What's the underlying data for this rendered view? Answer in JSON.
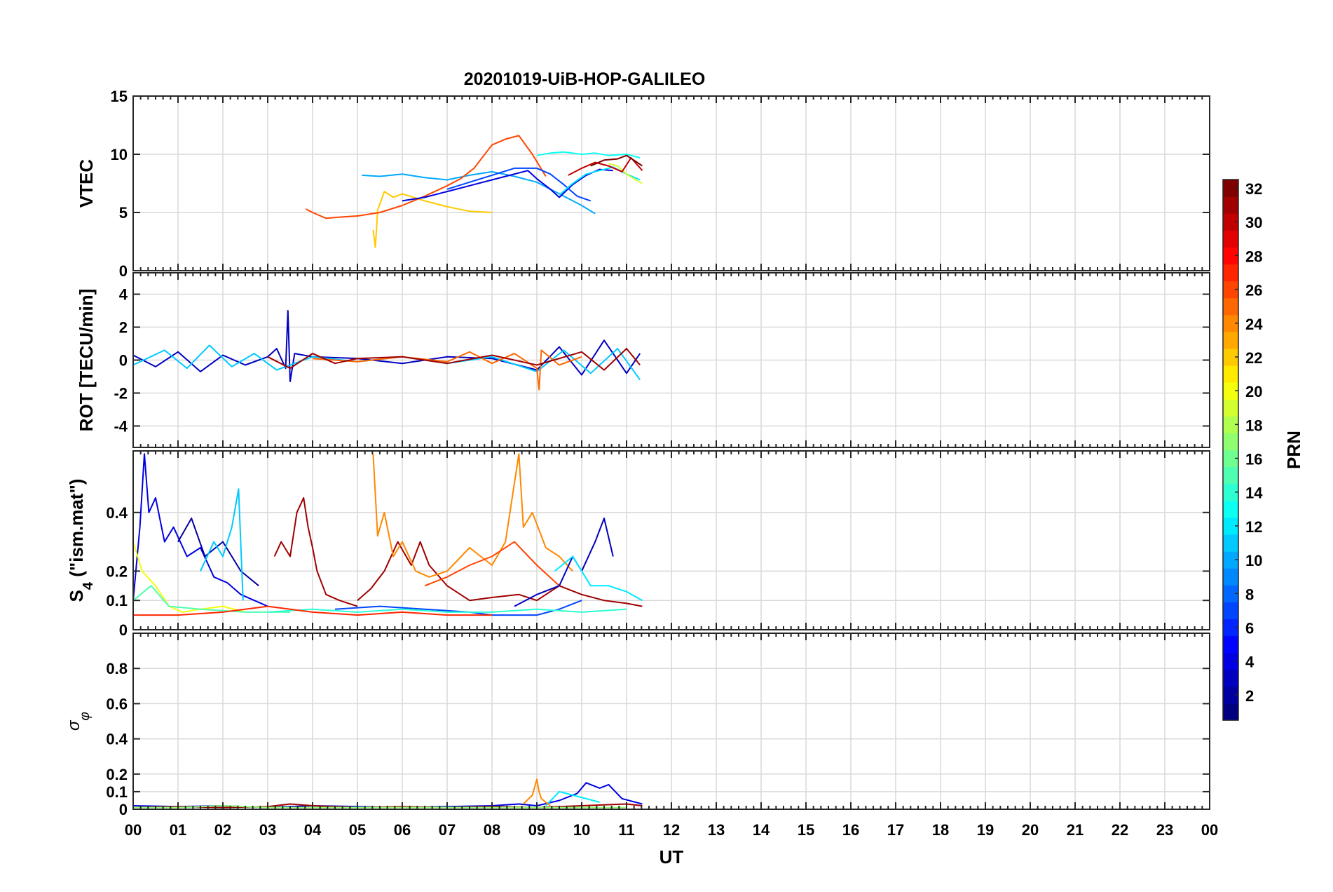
{
  "figure": {
    "title": "20201019-UiB-HOP-GALILEO",
    "xlabel": "UT",
    "x_ticks": [
      "00",
      "01",
      "02",
      "03",
      "04",
      "05",
      "06",
      "07",
      "08",
      "09",
      "10",
      "11",
      "12",
      "13",
      "14",
      "15",
      "16",
      "17",
      "18",
      "19",
      "20",
      "21",
      "22",
      "23",
      "00"
    ],
    "colorbar": {
      "label": "PRN",
      "range": [
        1,
        32
      ],
      "ticks": [
        "2",
        "4",
        "6",
        "8",
        "10",
        "12",
        "14",
        "16",
        "18",
        "20",
        "22",
        "24",
        "26",
        "28",
        "30",
        "32"
      ],
      "colormap": "jet"
    }
  },
  "chart_data": [
    {
      "type": "line",
      "ylabel": "VTEC",
      "xlim": [
        0,
        24
      ],
      "ylim": [
        0,
        15
      ],
      "y_ticks": [
        "0",
        "5",
        "10",
        "15"
      ],
      "series": [
        {
          "prn": 22,
          "x": [
            5.35,
            5.4,
            5.45,
            5.6,
            5.8,
            6.0,
            6.5,
            7.0,
            7.5,
            8.0
          ],
          "y": [
            3.5,
            2.0,
            5.2,
            6.8,
            6.3,
            6.6,
            6.0,
            5.5,
            5.1,
            5.0
          ]
        },
        {
          "prn": 10,
          "x": [
            5.1,
            5.5,
            6.0,
            6.5,
            7.0,
            7.5,
            8.0,
            8.5,
            9.0,
            9.5,
            10.0,
            10.3
          ],
          "y": [
            8.2,
            8.1,
            8.3,
            8.0,
            7.8,
            8.2,
            8.5,
            8.1,
            7.6,
            6.6,
            5.6,
            4.9
          ]
        },
        {
          "prn": 26,
          "x": [
            3.85,
            4.0,
            4.3,
            4.6,
            5.0,
            5.5,
            6.0,
            6.5,
            7.0,
            7.3,
            7.6,
            8.0,
            8.3,
            8.6,
            8.9,
            9.2
          ],
          "y": [
            5.3,
            5.0,
            4.5,
            4.6,
            4.7,
            5.0,
            5.6,
            6.4,
            7.3,
            7.9,
            8.8,
            10.8,
            11.3,
            11.6,
            10.0,
            8.1
          ]
        },
        {
          "prn": 4,
          "x": [
            6.0,
            6.5,
            7.0,
            7.5,
            8.0,
            8.4,
            8.8,
            9.0,
            9.3,
            9.5,
            9.8,
            10.1,
            10.4,
            10.7
          ],
          "y": [
            6.0,
            6.3,
            6.8,
            7.3,
            7.8,
            8.2,
            8.6,
            7.9,
            7.0,
            6.3,
            7.4,
            8.2,
            8.7,
            8.6
          ]
        },
        {
          "prn": 7,
          "x": [
            7.0,
            7.5,
            8.0,
            8.5,
            9.0,
            9.3,
            9.6,
            9.9,
            10.2
          ],
          "y": [
            7.0,
            7.6,
            8.2,
            8.8,
            8.8,
            8.3,
            7.4,
            6.4,
            6.0
          ]
        },
        {
          "prn": 13,
          "x": [
            9.0,
            9.3,
            9.6,
            10.0,
            10.3,
            10.6,
            11.0,
            11.3
          ],
          "y": [
            9.9,
            10.1,
            10.2,
            10.0,
            10.1,
            9.9,
            10.0,
            9.7
          ]
        },
        {
          "prn": 12,
          "x": [
            9.5,
            9.8,
            10.1,
            10.4,
            10.7,
            11.0,
            11.3
          ],
          "y": [
            6.5,
            7.5,
            8.3,
            8.6,
            8.9,
            8.3,
            7.8
          ]
        },
        {
          "prn": 19,
          "x": [
            10.6,
            10.8,
            11.0,
            11.2,
            11.35
          ],
          "y": [
            9.2,
            9.0,
            8.3,
            7.8,
            7.5
          ]
        },
        {
          "prn": 30,
          "x": [
            9.7,
            10.0,
            10.3,
            10.6,
            10.9,
            11.1,
            11.35
          ],
          "y": [
            8.2,
            8.8,
            9.3,
            9.0,
            8.5,
            9.7,
            8.6
          ]
        },
        {
          "prn": 32,
          "x": [
            10.2,
            10.5,
            10.8,
            11.0,
            11.2,
            11.35
          ],
          "y": [
            9.0,
            9.5,
            9.6,
            9.9,
            9.4,
            9.0
          ]
        }
      ]
    },
    {
      "type": "line",
      "ylabel": "ROT [TECU/min]",
      "xlim": [
        0,
        24
      ],
      "ylim": [
        -5.3,
        5.3
      ],
      "y_ticks": [
        "-4",
        "-2",
        "0",
        "2",
        "4"
      ],
      "series": [
        {
          "prn": 3,
          "x": [
            0.0,
            0.5,
            1.0,
            1.5,
            2.0,
            2.5,
            3.0,
            3.2,
            3.4,
            3.45,
            3.5,
            3.6,
            4.0,
            5.0,
            6.0,
            7.0,
            8.0,
            9.0,
            9.5,
            10.0,
            10.5,
            11.0,
            11.3
          ],
          "y": [
            0.3,
            -0.4,
            0.5,
            -0.7,
            0.3,
            -0.3,
            0.2,
            0.7,
            -0.5,
            3.0,
            -1.3,
            0.4,
            0.2,
            0.1,
            -0.2,
            0.2,
            0.1,
            -0.6,
            0.8,
            -0.9,
            1.2,
            -0.8,
            0.4
          ]
        },
        {
          "prn": 11,
          "x": [
            0.0,
            0.7,
            1.2,
            1.7,
            2.2,
            2.7,
            3.2,
            4.0,
            5.0,
            6.0,
            7.0,
            8.0,
            9.0,
            9.6,
            10.2,
            10.8,
            11.3
          ],
          "y": [
            -0.3,
            0.6,
            -0.5,
            0.9,
            -0.4,
            0.4,
            -0.6,
            0.2,
            -0.1,
            0.2,
            -0.2,
            0.2,
            -0.7,
            0.6,
            -0.8,
            0.7,
            -1.2
          ]
        },
        {
          "prn": 25,
          "x": [
            4.0,
            5.0,
            6.0,
            7.0,
            7.5,
            8.0,
            8.5,
            9.0,
            9.05,
            9.1,
            9.5,
            10.0
          ],
          "y": [
            0.1,
            -0.1,
            0.2,
            -0.1,
            0.5,
            -0.2,
            0.4,
            -0.5,
            -1.8,
            0.6,
            -0.3,
            0.2
          ]
        },
        {
          "prn": 31,
          "x": [
            3.0,
            3.5,
            4.0,
            4.5,
            5.0,
            6.0,
            7.0,
            8.0,
            9.0,
            10.0,
            10.5,
            11.0,
            11.3
          ],
          "y": [
            0.2,
            -0.5,
            0.4,
            -0.2,
            0.1,
            0.2,
            -0.2,
            0.3,
            -0.3,
            0.5,
            -0.6,
            0.7,
            -0.3
          ]
        }
      ]
    },
    {
      "type": "line",
      "ylabel": "S4 (\"ism.mat\")",
      "ylabel_main": "S",
      "ylabel_sub": "4",
      "ylabel_rest": " (\"ism.mat\")",
      "xlim": [
        0,
        24
      ],
      "ylim": [
        0,
        0.61
      ],
      "y_ticks": [
        "0",
        "0.1",
        "0.2",
        "0.4"
      ],
      "series": [
        {
          "prn": 4,
          "x": [
            0.0,
            0.15,
            0.25,
            0.35,
            0.5,
            0.7,
            0.9,
            1.2,
            1.5,
            1.8,
            2.1,
            2.4,
            2.7,
            3.0
          ],
          "y": [
            0.1,
            0.35,
            0.6,
            0.4,
            0.45,
            0.3,
            0.35,
            0.25,
            0.28,
            0.18,
            0.16,
            0.12,
            0.1,
            0.08
          ]
        },
        {
          "prn": 2,
          "x": [
            1.0,
            1.3,
            1.6,
            2.0,
            2.4,
            2.8
          ],
          "y": [
            0.3,
            0.38,
            0.25,
            0.3,
            0.2,
            0.15
          ]
        },
        {
          "prn": 11,
          "x": [
            1.5,
            1.8,
            2.0,
            2.2,
            2.35,
            2.45
          ],
          "y": [
            0.2,
            0.3,
            0.25,
            0.35,
            0.48,
            0.1
          ]
        },
        {
          "prn": 20,
          "x": [
            0.0,
            0.2,
            0.5,
            0.8,
            1.1,
            1.5,
            2.0,
            2.5
          ],
          "y": [
            0.3,
            0.2,
            0.15,
            0.08,
            0.06,
            0.07,
            0.08,
            0.06
          ]
        },
        {
          "prn": 15,
          "x": [
            0.0,
            0.4,
            0.8,
            1.5,
            2.5,
            3.5
          ],
          "y": [
            0.1,
            0.15,
            0.08,
            0.07,
            0.06,
            0.06
          ]
        },
        {
          "prn": 31,
          "x": [
            3.15,
            3.3,
            3.5,
            3.65,
            3.8,
            3.9,
            4.0,
            4.1,
            4.3,
            4.6,
            5.0
          ],
          "y": [
            0.25,
            0.3,
            0.25,
            0.4,
            0.45,
            0.35,
            0.28,
            0.2,
            0.12,
            0.1,
            0.08
          ]
        },
        {
          "prn": 31,
          "x": [
            5.0,
            5.3,
            5.6,
            5.9,
            6.2,
            6.4,
            6.6,
            7.0,
            7.5,
            8.0,
            8.6,
            9.0,
            9.5,
            10.0,
            10.5,
            11.0,
            11.35
          ],
          "y": [
            0.1,
            0.14,
            0.2,
            0.3,
            0.22,
            0.3,
            0.22,
            0.15,
            0.1,
            0.11,
            0.12,
            0.1,
            0.15,
            0.12,
            0.1,
            0.09,
            0.08
          ]
        },
        {
          "prn": 24,
          "x": [
            5.35,
            5.45,
            5.6,
            5.8,
            6.0,
            6.3,
            6.6,
            7.0,
            7.5,
            8.0,
            8.3,
            8.6,
            8.7,
            8.9,
            9.2,
            9.5,
            9.8
          ],
          "y": [
            0.6,
            0.32,
            0.4,
            0.25,
            0.3,
            0.2,
            0.18,
            0.2,
            0.28,
            0.22,
            0.3,
            0.6,
            0.35,
            0.4,
            0.28,
            0.25,
            0.2
          ]
        },
        {
          "prn": 26,
          "x": [
            6.5,
            7.0,
            7.5,
            8.0,
            8.5,
            9.0,
            9.5
          ],
          "y": [
            0.15,
            0.18,
            0.22,
            0.25,
            0.3,
            0.22,
            0.15
          ]
        },
        {
          "prn": 3,
          "x": [
            8.5,
            9.0,
            9.5,
            9.8,
            10.0,
            10.3,
            10.5,
            10.7
          ],
          "y": [
            0.08,
            0.12,
            0.15,
            0.25,
            0.2,
            0.3,
            0.38,
            0.25
          ]
        },
        {
          "prn": 12,
          "x": [
            9.4,
            9.8,
            10.2,
            10.6,
            11.0,
            11.35
          ],
          "y": [
            0.2,
            0.25,
            0.15,
            0.15,
            0.13,
            0.1
          ]
        },
        {
          "prn": 7,
          "x": [
            4.5,
            5.5,
            6.5,
            7.5,
            8.0,
            8.5,
            9.0,
            9.5,
            10.0
          ],
          "y": [
            0.07,
            0.08,
            0.07,
            0.06,
            0.05,
            0.05,
            0.05,
            0.07,
            0.1
          ]
        },
        {
          "prn": 14,
          "x": [
            3.0,
            4.0,
            5.0,
            6.0,
            7.0,
            8.0,
            9.0,
            10.0,
            11.0
          ],
          "y": [
            0.06,
            0.07,
            0.06,
            0.07,
            0.06,
            0.06,
            0.07,
            0.06,
            0.07
          ]
        },
        {
          "prn": 27,
          "x": [
            0.0,
            1.0,
            2.0,
            3.0,
            4.0,
            5.0,
            6.0,
            7.0,
            8.0
          ],
          "y": [
            0.05,
            0.05,
            0.06,
            0.08,
            0.06,
            0.05,
            0.06,
            0.05,
            0.05
          ]
        }
      ]
    },
    {
      "type": "line",
      "ylabel": "σφ",
      "ylabel_main": "σ",
      "ylabel_sub": "φ",
      "xlim": [
        0,
        24
      ],
      "ylim": [
        0,
        1
      ],
      "y_ticks": [
        "0",
        "0.1",
        "0.2",
        "0.4",
        "0.6",
        "0.8"
      ],
      "series": [
        {
          "prn": 4,
          "x": [
            0.0,
            1.0,
            2.0,
            3.0,
            4.0,
            5.0,
            6.0,
            7.0,
            8.0,
            8.6,
            9.0,
            9.5,
            9.9,
            10.1,
            10.4,
            10.6,
            10.9,
            11.35
          ],
          "y": [
            0.02,
            0.015,
            0.02,
            0.01,
            0.02,
            0.015,
            0.01,
            0.015,
            0.02,
            0.03,
            0.02,
            0.05,
            0.09,
            0.15,
            0.12,
            0.14,
            0.06,
            0.03
          ]
        },
        {
          "prn": 12,
          "x": [
            9.2,
            9.5,
            9.8,
            10.1,
            10.4
          ],
          "y": [
            0.02,
            0.1,
            0.08,
            0.06,
            0.04
          ]
        },
        {
          "prn": 24,
          "x": [
            8.7,
            8.9,
            9.0,
            9.05,
            9.1,
            9.3
          ],
          "y": [
            0.03,
            0.08,
            0.17,
            0.1,
            0.06,
            0.02
          ]
        },
        {
          "prn": 31,
          "x": [
            0.0,
            1.0,
            2.0,
            3.0,
            3.5,
            4.0,
            5.0,
            6.0,
            7.0,
            8.0,
            9.0,
            10.0,
            11.0,
            11.35
          ],
          "y": [
            0.01,
            0.015,
            0.01,
            0.015,
            0.03,
            0.02,
            0.01,
            0.015,
            0.01,
            0.015,
            0.01,
            0.02,
            0.03,
            0.02
          ]
        },
        {
          "prn": 17,
          "x": [
            0.0,
            1.0,
            2.0,
            3.0,
            4.0,
            5.0,
            6.0,
            7.0,
            8.0,
            9.0,
            10.0,
            11.0
          ],
          "y": [
            0.01,
            0.01,
            0.02,
            0.01,
            0.01,
            0.01,
            0.01,
            0.01,
            0.01,
            0.01,
            0.01,
            0.01
          ]
        }
      ]
    }
  ]
}
